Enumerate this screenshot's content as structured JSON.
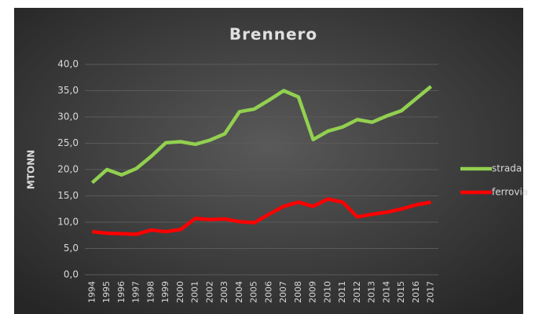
{
  "chart_data": {
    "type": "line",
    "title": "Brennero",
    "y_label": "MTONN",
    "categories": [
      "1994",
      "1995",
      "1996",
      "1997",
      "1998",
      "1999",
      "2000",
      "2001",
      "2002",
      "2003",
      "2004",
      "2005",
      "2006",
      "2007",
      "2008",
      "2009",
      "2010",
      "2011",
      "2012",
      "2013",
      "2014",
      "2015",
      "2016",
      "2017"
    ],
    "series": [
      {
        "name": "strada",
        "color": "#92d050",
        "values": [
          17.5,
          20,
          19,
          20.2,
          22.5,
          25.1,
          25.3,
          24.8,
          25.6,
          26.8,
          31,
          31.5,
          33.2,
          35,
          33.8,
          25.7,
          27.3,
          28.1,
          29.5,
          29,
          30.2,
          31.2,
          33.5,
          35.8
        ]
      },
      {
        "name": "ferrovia",
        "color": "#ff0000",
        "values": [
          8.2,
          7.9,
          7.8,
          7.7,
          8.5,
          8.2,
          8.6,
          10.7,
          10.5,
          10.6,
          10.1,
          9.9,
          11.5,
          13,
          13.8,
          13,
          14.4,
          13.8,
          11,
          11.5,
          11.9,
          12.5,
          13.3,
          13.8
        ]
      }
    ],
    "ylim": [
      0,
      40
    ],
    "yticks": [
      {
        "value": 0,
        "label": "0,0"
      },
      {
        "value": 5,
        "label": "5,0"
      },
      {
        "value": 10,
        "label": "10,0"
      },
      {
        "value": 15,
        "label": "15,0"
      },
      {
        "value": 20,
        "label": "20,0"
      },
      {
        "value": 25,
        "label": "25,0"
      },
      {
        "value": 30,
        "label": "30,0"
      },
      {
        "value": 35,
        "label": "35,0"
      },
      {
        "value": 40,
        "label": "40,0"
      }
    ],
    "grid": true,
    "legend": "right"
  }
}
